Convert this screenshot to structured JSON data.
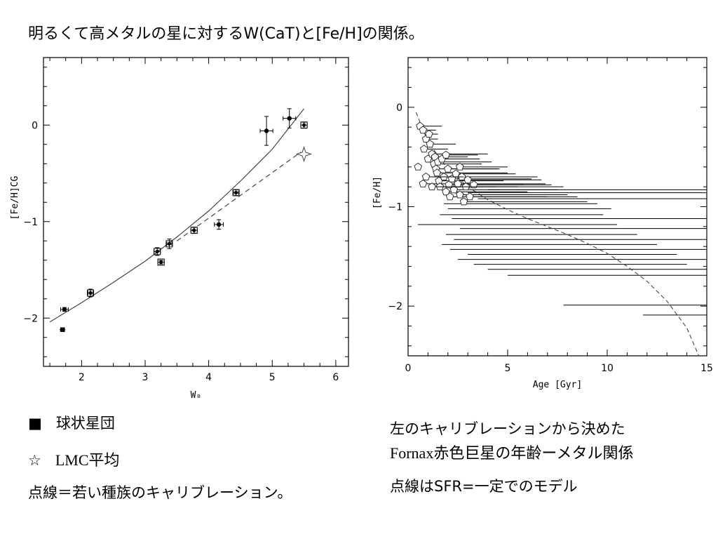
{
  "page": {
    "title": "明るくて高メタルの星に対するW(CaT)と[Fe/H]の関係。"
  },
  "left_caption": {
    "legend_square_symbol": "■",
    "legend_square_label": "球状星団",
    "legend_star_symbol": "☆",
    "legend_star_label": "LMC平均",
    "note": "点線＝若い種族のキャリブレーション。"
  },
  "right_caption": {
    "line1": "左のキャリブレーションから決めた",
    "line2": "Fornax赤色巨星の年齢ーメタル関係",
    "line3": "点線はSFR=一定でのモデル"
  },
  "chart_data": [
    {
      "type": "scatter",
      "xlabel": "W₀",
      "ylabel": "[Fe/H]CG",
      "xlim": [
        1.4,
        6.2
      ],
      "ylim": [
        -2.5,
        0.7
      ],
      "xticks": [
        "2",
        "3",
        "4",
        "5",
        "6"
      ],
      "yticks": [
        "0",
        "−1",
        "−2"
      ],
      "points": [
        {
          "x": 1.73,
          "y": -1.91,
          "xerr": 0.06,
          "yerr": 0.02,
          "marker": "circle"
        },
        {
          "x": 1.7,
          "y": -2.12,
          "xerr": 0.03,
          "yerr": 0.02,
          "marker": "x"
        },
        {
          "x": 2.14,
          "y": -1.74,
          "xerr": 0.04,
          "yerr": 0.04,
          "marker": "square"
        },
        {
          "x": 3.19,
          "y": -1.31,
          "xerr": 0.05,
          "yerr": 0.04,
          "marker": "square"
        },
        {
          "x": 3.25,
          "y": -1.42,
          "xerr": 0.05,
          "yerr": 0.02,
          "marker": "square"
        },
        {
          "x": 3.38,
          "y": -1.23,
          "xerr": 0.04,
          "yerr": 0.05,
          "marker": "square"
        },
        {
          "x": 3.77,
          "y": -1.09,
          "xerr": 0.05,
          "yerr": 0.03,
          "marker": "square"
        },
        {
          "x": 4.16,
          "y": -1.03,
          "xerr": 0.07,
          "yerr": 0.05,
          "marker": "circle"
        },
        {
          "x": 4.43,
          "y": -0.7,
          "xerr": 0.04,
          "yerr": 0.03,
          "marker": "square"
        },
        {
          "x": 4.91,
          "y": -0.06,
          "xerr": 0.1,
          "yerr": 0.15,
          "marker": "circle"
        },
        {
          "x": 5.27,
          "y": 0.07,
          "xerr": 0.1,
          "yerr": 0.1,
          "marker": "circle"
        },
        {
          "x": 5.5,
          "y": 0.0,
          "xerr": 0.05,
          "yerr": 0.03,
          "marker": "square"
        },
        {
          "x": 5.5,
          "y": -0.3,
          "xerr": 0,
          "yerr": 0,
          "marker": "star"
        }
      ],
      "solid_fit": [
        [
          1.5,
          -2.04
        ],
        [
          2.0,
          -1.84
        ],
        [
          2.5,
          -1.63
        ],
        [
          3.0,
          -1.41
        ],
        [
          3.5,
          -1.16
        ],
        [
          4.0,
          -0.89
        ],
        [
          4.5,
          -0.58
        ],
        [
          5.0,
          -0.25
        ],
        [
          5.5,
          0.17
        ]
      ],
      "dashed_fit": [
        [
          3.5,
          -1.2
        ],
        [
          5.45,
          -0.28
        ]
      ]
    },
    {
      "type": "scatter",
      "xlabel": "Age [Gyr]",
      "ylabel": "[Fe/H]",
      "xlim": [
        0,
        15
      ],
      "ylim": [
        -2.5,
        0.5
      ],
      "xticks": [
        "0",
        "5",
        "10",
        "15"
      ],
      "yticks": [
        "0",
        "−1",
        "−2"
      ],
      "points": [
        {
          "x": 0.5,
          "y": -0.6,
          "xmax": 0.6
        },
        {
          "x": 0.6,
          "y": -0.19,
          "xmax": 1.7
        },
        {
          "x": 0.75,
          "y": -0.23,
          "xmax": 1.4
        },
        {
          "x": 0.8,
          "y": -0.42,
          "xmax": 2.0
        },
        {
          "x": 0.9,
          "y": -0.32,
          "xmax": 1.5
        },
        {
          "x": 1.0,
          "y": -0.52,
          "xmax": 3.0
        },
        {
          "x": 1.05,
          "y": -0.27,
          "xmax": 1.5
        },
        {
          "x": 1.1,
          "y": -0.37,
          "xmax": 2.4
        },
        {
          "x": 0.75,
          "y": -0.77,
          "xmax": 3.2
        },
        {
          "x": 1.2,
          "y": -0.47,
          "xmax": 4.0
        },
        {
          "x": 1.3,
          "y": -0.57,
          "xmax": 3.7
        },
        {
          "x": 1.35,
          "y": -0.5,
          "xmax": 3.0
        },
        {
          "x": 1.4,
          "y": -0.62,
          "xmax": 4.5
        },
        {
          "x": 1.45,
          "y": -0.66,
          "xmax": 5.0
        },
        {
          "x": 1.5,
          "y": -0.55,
          "xmax": 4.2
        },
        {
          "x": 1.55,
          "y": -0.74,
          "xmax": 4.8
        },
        {
          "x": 1.6,
          "y": -0.8,
          "xmax": 5.5
        },
        {
          "x": 1.7,
          "y": -0.52,
          "xmax": 3.6
        },
        {
          "x": 1.8,
          "y": -0.7,
          "xmax": 5.2
        },
        {
          "x": 1.9,
          "y": -0.85,
          "xmax": 6.0
        },
        {
          "x": 2.0,
          "y": -0.62,
          "xmax": 4.6
        },
        {
          "x": 2.05,
          "y": -0.78,
          "xmax": 5.8
        },
        {
          "x": 2.1,
          "y": -0.9,
          "xmax": 7.0
        },
        {
          "x": 2.2,
          "y": -0.72,
          "xmax": 6.2
        },
        {
          "x": 2.3,
          "y": -0.83,
          "xmax": 7.5
        },
        {
          "x": 2.4,
          "y": -0.67,
          "xmax": 5.4
        },
        {
          "x": 2.5,
          "y": -0.77,
          "xmax": 6.9
        },
        {
          "x": 2.6,
          "y": -0.88,
          "xmax": 8.0
        },
        {
          "x": 2.7,
          "y": -0.7,
          "xmax": 6.5
        },
        {
          "x": 2.8,
          "y": -0.95,
          "xmax": 9.0
        },
        {
          "x": 2.9,
          "y": -0.8,
          "xmax": 7.8
        },
        {
          "x": 3.0,
          "y": -0.73,
          "xmax": 6.7
        },
        {
          "x": 3.1,
          "y": -0.9,
          "xmax": 8.5
        },
        {
          "x": 3.3,
          "y": -0.78,
          "xmax": 7.2
        },
        {
          "x": 1.9,
          "y": -0.48,
          "xmax": 3.5
        },
        {
          "x": 0.9,
          "y": -0.7,
          "xmax": 2.8
        },
        {
          "x": 1.2,
          "y": -0.8,
          "xmax": 4.4
        },
        {
          "x": 2.6,
          "y": -0.6,
          "xmax": 5.0
        }
      ],
      "extra_bars": [
        {
          "y": -0.97,
          "x1": 1.8,
          "x2": 9.5
        },
        {
          "y": -1.02,
          "x1": 2.0,
          "x2": 10.2
        },
        {
          "y": -1.08,
          "x1": 1.6,
          "x2": 9.8
        },
        {
          "y": -1.12,
          "x1": 2.2,
          "x2": 15
        },
        {
          "y": -1.18,
          "x1": 0.5,
          "x2": 10.5
        },
        {
          "y": -1.22,
          "x1": 2.6,
          "x2": 15
        },
        {
          "y": -1.28,
          "x1": 1.9,
          "x2": 11.5
        },
        {
          "y": -1.33,
          "x1": 2.3,
          "x2": 15
        },
        {
          "y": -1.38,
          "x1": 1.7,
          "x2": 12.5
        },
        {
          "y": -1.43,
          "x1": 2.1,
          "x2": 15
        },
        {
          "y": -1.48,
          "x1": 3.0,
          "x2": 13.5
        },
        {
          "y": -1.53,
          "x1": 2.5,
          "x2": 15
        },
        {
          "y": -1.58,
          "x1": 3.3,
          "x2": 14.0
        },
        {
          "y": -1.63,
          "x1": 4.0,
          "x2": 15
        },
        {
          "y": -1.69,
          "x1": 5.0,
          "x2": 15
        },
        {
          "y": -1.99,
          "x1": 7.8,
          "x2": 15
        },
        {
          "y": -2.09,
          "x1": 11.8,
          "x2": 15
        },
        {
          "y": -0.92,
          "x1": 3.5,
          "x2": 15
        },
        {
          "y": -0.86,
          "x1": 3.0,
          "x2": 15
        },
        {
          "y": -0.83,
          "x1": 4.0,
          "x2": 15
        }
      ],
      "model": [
        [
          0.4,
          -0.05
        ],
        [
          1,
          -0.35
        ],
        [
          2,
          -0.62
        ],
        [
          3,
          -0.8
        ],
        [
          4,
          -0.93
        ],
        [
          5,
          -1.03
        ],
        [
          6,
          -1.12
        ],
        [
          7,
          -1.2
        ],
        [
          8,
          -1.28
        ],
        [
          9,
          -1.37
        ],
        [
          10,
          -1.47
        ],
        [
          11,
          -1.6
        ],
        [
          12,
          -1.75
        ],
        [
          13,
          -1.95
        ],
        [
          14,
          -2.22
        ],
        [
          14.6,
          -2.5
        ]
      ]
    }
  ]
}
